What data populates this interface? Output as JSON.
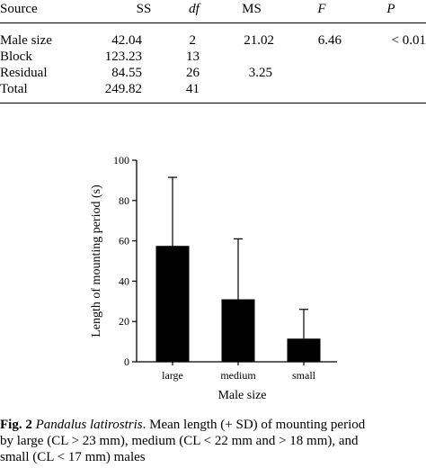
{
  "anova": {
    "headers": {
      "source": "Source",
      "ss": "SS",
      "df": "df",
      "ms": "MS",
      "f": "F",
      "p": "P"
    },
    "rows": [
      {
        "source": "Male size",
        "ss": "42.04",
        "df": "2",
        "ms": "21.02",
        "f": "6.46",
        "p": "< 0.01"
      },
      {
        "source": "Block",
        "ss": "123.23",
        "df": "13",
        "ms": "",
        "f": "",
        "p": ""
      },
      {
        "source": "Residual",
        "ss": "84.55",
        "df": "26",
        "ms": "3.25",
        "f": "",
        "p": ""
      },
      {
        "source": "Total",
        "ss": "249.82",
        "df": "41",
        "ms": "",
        "f": "",
        "p": ""
      }
    ]
  },
  "chart_data": {
    "type": "bar",
    "categories": [
      "large",
      "medium",
      "small"
    ],
    "values": [
      57.5,
      31,
      11.5
    ],
    "errors_sd": [
      34,
      30,
      14.5
    ],
    "xlabel": "Male size",
    "ylabel": "Length of mounting period (s)",
    "ylim": [
      0,
      100
    ],
    "yticks": [
      0,
      20,
      40,
      60,
      80,
      100
    ],
    "grid": false,
    "bar_color": "#000000"
  },
  "caption": {
    "label": "Fig. 2",
    "species": "Pandalus latirostris",
    "line1_rest": ". Mean length (+ SD) of mounting period",
    "line2": "by large (CL > 23 mm), medium (CL < 22 mm and  > 18 mm), and",
    "line3": "small (CL < 17 mm) males"
  }
}
